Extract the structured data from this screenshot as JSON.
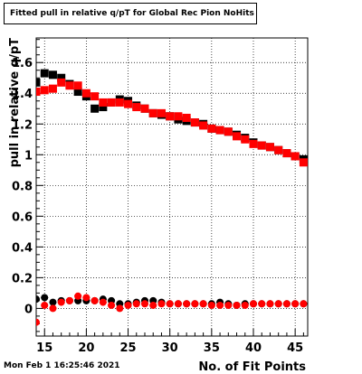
{
  "chart_data": {
    "type": "scatter",
    "title": "Fitted pull in relative q/pT  for Global Rec Pion NoHits",
    "xlabel": "No. of Fit Points",
    "ylabel": "pull in relative q/pT",
    "xlim": [
      14,
      46.5
    ],
    "ylim": [
      -0.18,
      1.76
    ],
    "xticks": [
      15,
      20,
      25,
      30,
      35,
      40,
      45
    ],
    "yticks": [
      0,
      0.2,
      0.4,
      0.6,
      0.8,
      1.0,
      1.2,
      1.4,
      1.6
    ],
    "xtick_labels": [
      "15",
      "20",
      "25",
      "30",
      "35",
      "40",
      "45"
    ],
    "ytick_labels": [
      "0",
      "0.2",
      "0.4",
      "0.6",
      "0.8",
      "1",
      "1.2",
      "1.4",
      "1.6"
    ],
    "grid": true,
    "series": [
      {
        "marker": "square",
        "color": "#000000",
        "x": [
          14,
          15,
          16,
          17,
          18,
          19,
          20,
          21,
          22,
          23,
          24,
          25,
          26,
          27,
          28,
          29,
          30,
          31,
          32,
          33,
          34,
          35,
          36,
          37,
          38,
          39,
          40,
          41,
          42,
          43,
          44,
          45,
          46
        ],
        "y": [
          1.47,
          1.53,
          1.52,
          1.5,
          1.46,
          1.41,
          1.38,
          1.3,
          1.31,
          1.34,
          1.36,
          1.35,
          1.32,
          1.3,
          1.27,
          1.26,
          1.25,
          1.23,
          1.22,
          1.21,
          1.2,
          1.17,
          1.16,
          1.15,
          1.13,
          1.11,
          1.08,
          1.06,
          1.05,
          1.03,
          1.01,
          0.99,
          0.97
        ]
      },
      {
        "marker": "square",
        "color": "#ff0000",
        "x": [
          14,
          15,
          16,
          17,
          18,
          19,
          20,
          21,
          22,
          23,
          24,
          25,
          26,
          27,
          28,
          29,
          30,
          31,
          32,
          33,
          34,
          35,
          36,
          37,
          38,
          39,
          40,
          41,
          42,
          43,
          44,
          45,
          46
        ],
        "y": [
          1.41,
          1.42,
          1.43,
          1.47,
          1.45,
          1.45,
          1.4,
          1.38,
          1.34,
          1.34,
          1.34,
          1.33,
          1.31,
          1.3,
          1.27,
          1.27,
          1.25,
          1.25,
          1.24,
          1.21,
          1.19,
          1.17,
          1.16,
          1.15,
          1.12,
          1.1,
          1.07,
          1.06,
          1.05,
          1.03,
          1.01,
          0.99,
          0.95
        ]
      },
      {
        "marker": "circle",
        "color": "#000000",
        "x": [
          14,
          15,
          16,
          17,
          18,
          19,
          20,
          21,
          22,
          23,
          24,
          25,
          26,
          27,
          28,
          29,
          30,
          31,
          32,
          33,
          34,
          35,
          36,
          37,
          38,
          39,
          40,
          41,
          42,
          43,
          44,
          45,
          46
        ],
        "y": [
          0.06,
          0.07,
          0.04,
          0.05,
          0.05,
          0.05,
          0.05,
          0.05,
          0.06,
          0.05,
          0.03,
          0.03,
          0.04,
          0.05,
          0.05,
          0.04,
          0.03,
          0.03,
          0.03,
          0.03,
          0.03,
          0.03,
          0.04,
          0.03,
          0.02,
          0.03,
          0.03,
          0.03,
          0.03,
          0.03,
          0.03,
          0.03,
          0.03
        ]
      },
      {
        "marker": "circle",
        "color": "#ff0000",
        "x": [
          14,
          15,
          16,
          17,
          18,
          19,
          20,
          21,
          22,
          23,
          24,
          25,
          26,
          27,
          28,
          29,
          30,
          31,
          32,
          33,
          34,
          35,
          36,
          37,
          38,
          39,
          40,
          41,
          42,
          43,
          44,
          45,
          46
        ],
        "y": [
          -0.09,
          0.02,
          0.0,
          0.04,
          0.05,
          0.08,
          0.07,
          0.05,
          0.04,
          0.02,
          0.0,
          0.02,
          0.03,
          0.03,
          0.02,
          0.03,
          0.03,
          0.03,
          0.03,
          0.03,
          0.03,
          0.02,
          0.02,
          0.02,
          0.02,
          0.02,
          0.03,
          0.03,
          0.03,
          0.03,
          0.03,
          0.03,
          0.03
        ]
      }
    ]
  },
  "footer": {
    "timestamp": "Mon Feb  1 16:25:46 2021"
  }
}
